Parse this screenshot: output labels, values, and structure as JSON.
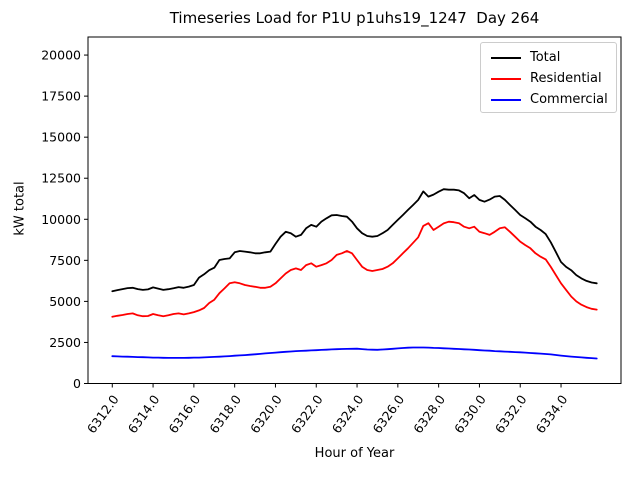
{
  "chart_data": {
    "type": "line",
    "title": "Timeseries Load for P1U p1uhs19_1247  Day 264",
    "xlabel": "Hour of Year",
    "ylabel": "kW total",
    "xlim": [
      6310.81,
      6336.94
    ],
    "ylim": [
      0,
      21100
    ],
    "grid": false,
    "legend_position": "upper right",
    "xticks": [
      6312,
      6314,
      6316,
      6318,
      6320,
      6322,
      6324,
      6326,
      6328,
      6330,
      6332,
      6334
    ],
    "xtick_labels": [
      "6312.0",
      "6314.0",
      "6316.0",
      "6318.0",
      "6320.0",
      "6322.0",
      "6324.0",
      "6326.0",
      "6328.0",
      "6330.0",
      "6332.0",
      "6334.0"
    ],
    "yticks": [
      0,
      2500,
      5000,
      7500,
      10000,
      12500,
      15000,
      17500,
      20000
    ],
    "ytick_labels": [
      "0",
      "2500",
      "5000",
      "7500",
      "10000",
      "12500",
      "15000",
      "17500",
      "20000"
    ],
    "x": [
      6312.0,
      6312.25,
      6312.5,
      6312.75,
      6313.0,
      6313.25,
      6313.5,
      6313.75,
      6314.0,
      6314.25,
      6314.5,
      6314.75,
      6315.0,
      6315.25,
      6315.5,
      6315.75,
      6316.0,
      6316.25,
      6316.5,
      6316.75,
      6317.0,
      6317.25,
      6317.5,
      6317.75,
      6318.0,
      6318.25,
      6318.5,
      6318.75,
      6319.0,
      6319.25,
      6319.5,
      6319.75,
      6320.0,
      6320.25,
      6320.5,
      6320.75,
      6321.0,
      6321.25,
      6321.5,
      6321.75,
      6322.0,
      6322.25,
      6322.5,
      6322.75,
      6323.0,
      6323.25,
      6323.5,
      6323.75,
      6324.0,
      6324.25,
      6324.5,
      6324.75,
      6325.0,
      6325.25,
      6325.5,
      6325.75,
      6326.0,
      6326.25,
      6326.5,
      6326.75,
      6327.0,
      6327.25,
      6327.5,
      6327.75,
      6328.0,
      6328.25,
      6328.5,
      6328.75,
      6329.0,
      6329.25,
      6329.5,
      6329.75,
      6330.0,
      6330.25,
      6330.5,
      6330.75,
      6331.0,
      6331.25,
      6331.5,
      6331.75,
      6332.0,
      6332.25,
      6332.5,
      6332.75,
      6333.0,
      6333.25,
      6333.5,
      6333.75,
      6334.0,
      6334.25,
      6334.5,
      6334.75,
      6335.0,
      6335.25,
      6335.5,
      6335.75
    ],
    "series": [
      {
        "name": "Total",
        "color": "#000000",
        "values": [
          5620,
          5690,
          5750,
          5810,
          5830,
          5750,
          5700,
          5730,
          5850,
          5780,
          5700,
          5740,
          5800,
          5870,
          5830,
          5900,
          6000,
          6450,
          6650,
          6900,
          7050,
          7520,
          7580,
          7620,
          7990,
          8070,
          8030,
          7990,
          7930,
          7930,
          7990,
          8030,
          8500,
          8940,
          9240,
          9150,
          8940,
          9050,
          9450,
          9660,
          9550,
          9860,
          10060,
          10240,
          10260,
          10200,
          10160,
          9860,
          9450,
          9150,
          8980,
          8940,
          8980,
          9150,
          9350,
          9660,
          9960,
          10260,
          10570,
          10870,
          11180,
          11700,
          11380,
          11500,
          11680,
          11830,
          11800,
          11800,
          11760,
          11590,
          11280,
          11480,
          11180,
          11070,
          11200,
          11380,
          11420,
          11180,
          10870,
          10570,
          10260,
          10060,
          9850,
          9550,
          9350,
          9100,
          8600,
          8000,
          7400,
          7100,
          6900,
          6600,
          6400,
          6250,
          6150,
          6100
        ]
      },
      {
        "name": "Residential",
        "color": "#ff0000",
        "values": [
          4060,
          4120,
          4170,
          4230,
          4270,
          4150,
          4100,
          4110,
          4230,
          4160,
          4100,
          4150,
          4230,
          4270,
          4210,
          4270,
          4350,
          4450,
          4600,
          4900,
          5100,
          5500,
          5790,
          6100,
          6160,
          6100,
          6000,
          5940,
          5890,
          5830,
          5830,
          5890,
          6100,
          6400,
          6700,
          6910,
          7010,
          6910,
          7210,
          7320,
          7110,
          7210,
          7320,
          7520,
          7830,
          7930,
          8070,
          7930,
          7520,
          7110,
          6910,
          6850,
          6910,
          6970,
          7110,
          7320,
          7620,
          7930,
          8230,
          8570,
          8900,
          9600,
          9760,
          9350,
          9550,
          9750,
          9850,
          9820,
          9760,
          9550,
          9450,
          9550,
          9240,
          9150,
          9050,
          9240,
          9450,
          9510,
          9240,
          8940,
          8640,
          8430,
          8230,
          7930,
          7720,
          7560,
          7100,
          6600,
          6100,
          5700,
          5300,
          5000,
          4800,
          4650,
          4550,
          4500
        ]
      },
      {
        "name": "Commercial",
        "color": "#0000ff",
        "values": [
          1660,
          1650,
          1640,
          1630,
          1620,
          1610,
          1600,
          1590,
          1580,
          1575,
          1565,
          1560,
          1560,
          1560,
          1560,
          1565,
          1575,
          1580,
          1590,
          1605,
          1620,
          1635,
          1650,
          1670,
          1690,
          1710,
          1730,
          1755,
          1780,
          1805,
          1830,
          1855,
          1880,
          1905,
          1930,
          1950,
          1970,
          1985,
          2000,
          2015,
          2030,
          2045,
          2060,
          2075,
          2090,
          2100,
          2110,
          2115,
          2120,
          2095,
          2070,
          2060,
          2050,
          2070,
          2090,
          2115,
          2140,
          2160,
          2180,
          2190,
          2195,
          2190,
          2185,
          2170,
          2160,
          2145,
          2130,
          2115,
          2100,
          2085,
          2070,
          2050,
          2030,
          2010,
          1995,
          1975,
          1960,
          1945,
          1930,
          1915,
          1900,
          1880,
          1860,
          1840,
          1820,
          1795,
          1770,
          1735,
          1700,
          1670,
          1640,
          1615,
          1590,
          1565,
          1545,
          1520
        ]
      }
    ]
  }
}
